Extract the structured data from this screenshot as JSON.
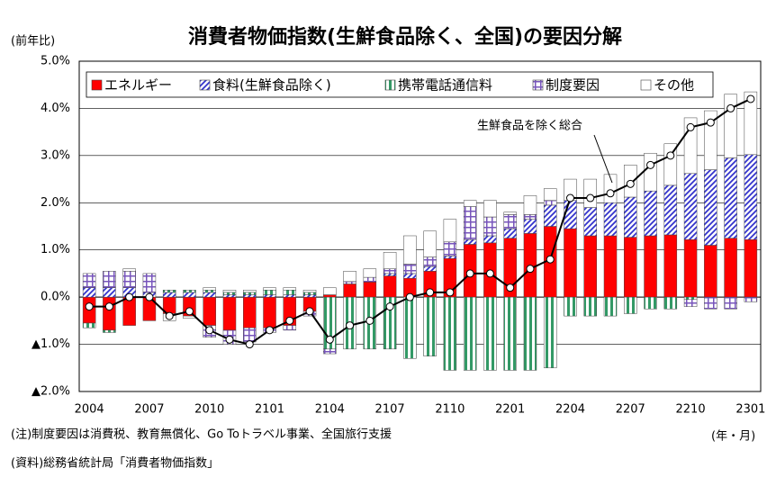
{
  "chart_data": {
    "type": "stacked-bar-line",
    "title": "消費者物価指数(生鮮食品除く、全国)の要因分解",
    "y_axis_label": "(前年比)",
    "x_axis_label": "(年・月)",
    "note": "(注)制度要因は消費税、教育無償化、Go Toトラベル事業、全国旅行支援",
    "source": "(資料)総務省統計局「消費者物価指数」",
    "categories": [
      "2004",
      null,
      null,
      "2007",
      null,
      null,
      "2010",
      null,
      null,
      "2101",
      null,
      null,
      "2104",
      null,
      null,
      "2107",
      null,
      null,
      "2110",
      null,
      null,
      "2201",
      null,
      null,
      "2204",
      null,
      null,
      "2207",
      null,
      null,
      "2210",
      null,
      null,
      "2301"
    ],
    "series": [
      {
        "name": "エネルギー",
        "color": "#ff0000",
        "values": [
          -0.55,
          -0.7,
          -0.6,
          -0.5,
          -0.35,
          -0.4,
          -0.6,
          -0.7,
          -0.65,
          -0.65,
          -0.6,
          -0.3,
          0.05,
          0.28,
          0.32,
          0.45,
          0.4,
          0.55,
          0.82,
          1.12,
          1.15,
          1.25,
          1.35,
          1.5,
          1.45,
          1.3,
          1.3,
          1.27,
          1.3,
          1.32,
          1.22,
          1.1,
          1.25,
          1.22
        ]
      },
      {
        "name": "食料(生鮮食品除く)",
        "color": "#3333cc",
        "values": [
          0.2,
          0.2,
          0.2,
          0.1,
          0.1,
          0.1,
          0.1,
          0.05,
          0.05,
          0.05,
          0.05,
          0.05,
          0,
          0,
          0,
          0.05,
          0.1,
          0.1,
          0.05,
          0.1,
          0.15,
          0.2,
          0.3,
          0.45,
          0.6,
          0.6,
          0.7,
          0.85,
          0.95,
          1.05,
          1.4,
          1.6,
          1.7,
          1.8
        ]
      },
      {
        "name": "携帯電話通信料",
        "color": "#339966",
        "values": [
          -0.1,
          -0.05,
          0,
          0,
          0.05,
          0.05,
          0.05,
          0.05,
          0.05,
          0.1,
          0.1,
          0.05,
          -1.1,
          -1.1,
          -1.1,
          -1.1,
          -1.3,
          -1.25,
          -1.55,
          -1.55,
          -1.55,
          -1.55,
          -1.55,
          -1.5,
          -0.4,
          -0.4,
          -0.4,
          -0.35,
          -0.25,
          -0.25,
          -0.05,
          0,
          0,
          0
        ]
      },
      {
        "name": "制度要因",
        "color": "#7755bb",
        "values": [
          0.3,
          0.35,
          0.35,
          0.4,
          0,
          0,
          -0.25,
          -0.3,
          -0.3,
          -0.1,
          -0.1,
          -0.1,
          -0.1,
          0.05,
          0.1,
          0.1,
          0.2,
          0.2,
          0.3,
          0.7,
          0.4,
          0.3,
          0.1,
          0.1,
          0,
          0,
          0,
          0,
          0,
          0,
          -0.15,
          -0.25,
          -0.25,
          -0.1
        ]
      },
      {
        "name": "その他",
        "color": "#ffffff",
        "values": [
          0,
          0,
          0.05,
          0,
          -0.15,
          -0.05,
          0.05,
          0.05,
          0.05,
          0.05,
          0.05,
          0.05,
          0.15,
          0.22,
          0.18,
          0.35,
          0.6,
          0.55,
          0.48,
          0.13,
          0.35,
          0.05,
          0.4,
          0.25,
          0.45,
          0.6,
          0.6,
          0.68,
          0.8,
          0.88,
          1.18,
          1.25,
          1.35,
          1.33
        ]
      }
    ],
    "line": {
      "name": "生鮮食品を除く総合",
      "color": "#000000",
      "values": [
        -0.2,
        -0.2,
        0.0,
        0.0,
        -0.4,
        -0.3,
        -0.7,
        -0.9,
        -1.0,
        -0.7,
        -0.5,
        -0.3,
        -0.9,
        -0.6,
        -0.5,
        -0.2,
        0.0,
        0.1,
        0.1,
        0.5,
        0.5,
        0.2,
        0.6,
        0.8,
        2.1,
        2.1,
        2.2,
        2.4,
        2.8,
        3.0,
        3.6,
        3.7,
        4.0,
        4.2
      ]
    },
    "ylim": [
      -2,
      5
    ],
    "yticks": [
      {
        "value": -2,
        "label": "▲2.0%"
      },
      {
        "value": -1,
        "label": "▲1.0%"
      },
      {
        "value": 0,
        "label": "0.0%"
      },
      {
        "value": 1,
        "label": "1.0%"
      },
      {
        "value": 2,
        "label": "2.0%"
      },
      {
        "value": 3,
        "label": "3.0%"
      },
      {
        "value": 4,
        "label": "4.0%"
      },
      {
        "value": 5,
        "label": "5.0%"
      }
    ],
    "grid": true
  }
}
